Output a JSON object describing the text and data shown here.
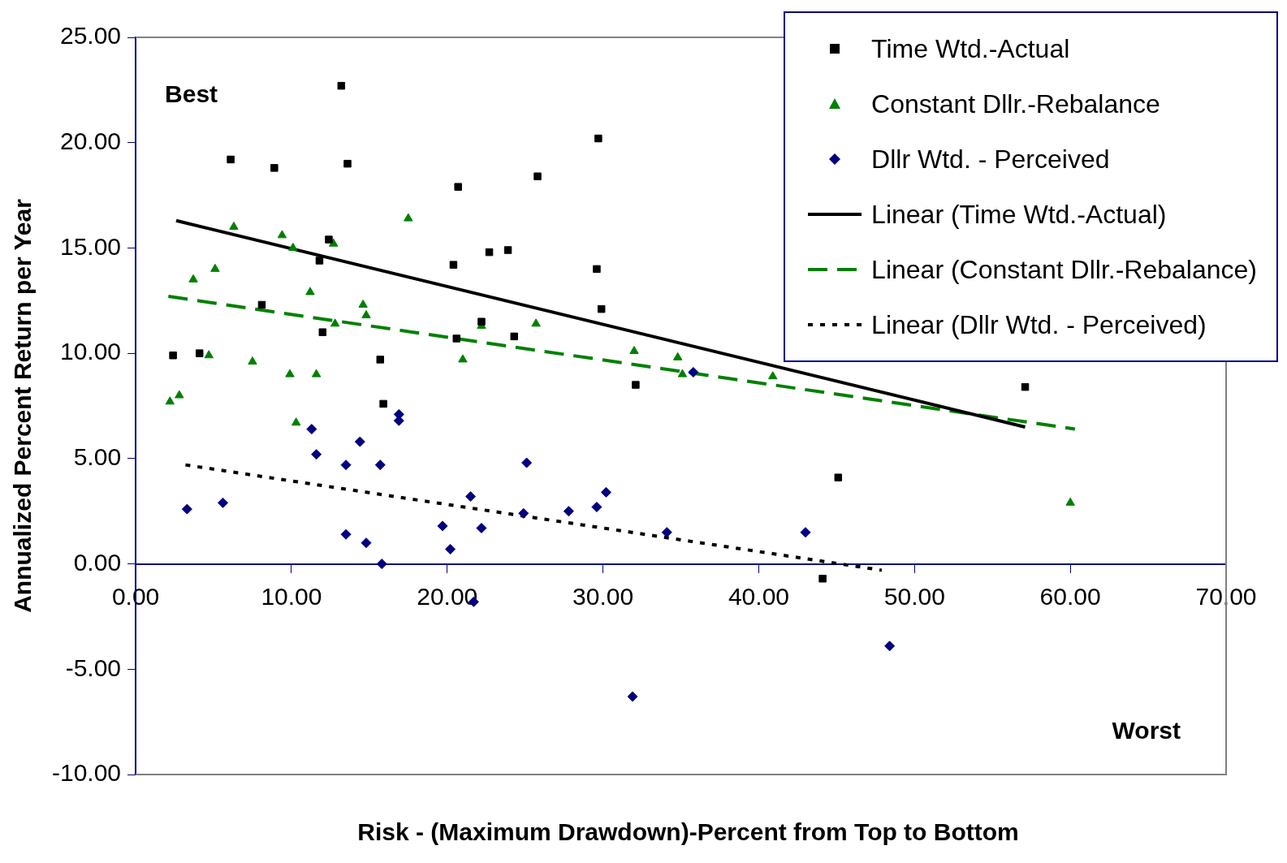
{
  "chart_data": {
    "type": "scatter",
    "xlabel": "Risk - (Maximum Drawdown)-Percent from Top to Bottom",
    "ylabel": "Annualized Percent Return per Year",
    "annotations": [
      "Best",
      "Worst"
    ],
    "xlim": [
      0,
      70
    ],
    "xticks": [
      {
        "value": 0,
        "label": "0.00"
      },
      {
        "value": 10,
        "label": "10.00"
      },
      {
        "value": 20,
        "label": "20.00"
      },
      {
        "value": 30,
        "label": "30.00"
      },
      {
        "value": 40,
        "label": "40.00"
      },
      {
        "value": 50,
        "label": "50.00"
      },
      {
        "value": 60,
        "label": "60.00"
      },
      {
        "value": 70,
        "label": "70.00"
      }
    ],
    "ylim": [
      -10,
      25
    ],
    "yticks": [
      {
        "value": -10,
        "label": "-10.00"
      },
      {
        "value": -5,
        "label": "-5.00"
      },
      {
        "value": 0,
        "label": "0.00"
      },
      {
        "value": 5,
        "label": "5.00"
      },
      {
        "value": 10,
        "label": "10.00"
      },
      {
        "value": 15,
        "label": "15.00"
      },
      {
        "value": 20,
        "label": "20.00"
      },
      {
        "value": 25,
        "label": "25.00"
      }
    ],
    "grid": false,
    "legend": "top right",
    "series": [
      {
        "name": "Time Wtd.-Actual",
        "type": "scatter",
        "marker": "square",
        "color": "#000000",
        "x": [
          2.4,
          4.1,
          6.1,
          8.9,
          8.1,
          12.4,
          11.8,
          12.0,
          13.2,
          13.6,
          15.7,
          15.9,
          20.4,
          20.7,
          20.6,
          22.2,
          22.7,
          23.9,
          24.3,
          25.8,
          29.6,
          29.7,
          29.9,
          32.1,
          45.1,
          44.1,
          57.1
        ],
        "values": [
          9.9,
          10.0,
          19.2,
          18.8,
          12.3,
          15.4,
          14.4,
          11.0,
          22.7,
          19.0,
          9.7,
          7.6,
          14.2,
          17.9,
          10.7,
          11.5,
          14.8,
          14.9,
          10.8,
          18.4,
          14.0,
          20.2,
          12.1,
          8.5,
          4.1,
          -0.7,
          8.4
        ]
      },
      {
        "name": "Constant Dllr.-Rebalance",
        "type": "scatter",
        "marker": "triangle",
        "color": "#008000",
        "x": [
          2.2,
          2.8,
          3.7,
          4.7,
          5.1,
          6.3,
          7.5,
          9.4,
          9.9,
          10.1,
          10.3,
          11.2,
          11.6,
          12.7,
          12.8,
          14.6,
          14.8,
          17.5,
          21.0,
          22.2,
          25.7,
          32.0,
          34.8,
          35.1,
          40.9,
          60.0
        ],
        "values": [
          7.7,
          8.0,
          13.5,
          9.9,
          14.0,
          16.0,
          9.6,
          15.6,
          9.0,
          15.0,
          6.7,
          12.9,
          9.0,
          15.2,
          11.4,
          12.3,
          11.8,
          16.4,
          9.7,
          11.3,
          11.4,
          10.1,
          9.8,
          9.0,
          8.9,
          2.9
        ]
      },
      {
        "name": "Dllr Wtd. - Perceived",
        "type": "scatter",
        "marker": "diamond",
        "color": "#000080",
        "x": [
          3.3,
          5.6,
          11.3,
          11.6,
          13.5,
          13.5,
          14.4,
          14.8,
          15.7,
          15.8,
          16.9,
          16.9,
          19.7,
          20.2,
          21.5,
          21.7,
          22.2,
          24.9,
          25.1,
          27.8,
          29.6,
          30.2,
          31.9,
          34.1,
          35.8,
          43.0,
          48.4
        ],
        "values": [
          2.6,
          2.9,
          6.4,
          5.2,
          4.7,
          1.4,
          5.8,
          1.0,
          4.7,
          0.0,
          7.1,
          6.8,
          1.8,
          0.7,
          3.2,
          -1.8,
          1.7,
          2.4,
          4.8,
          2.5,
          2.7,
          3.4,
          -6.3,
          1.5,
          9.1,
          1.5,
          -3.9
        ]
      },
      {
        "name": "Linear (Time Wtd.-Actual)",
        "type": "line",
        "line_style": "solid",
        "color": "#000000",
        "x": [
          2.6,
          57.1
        ],
        "values": [
          16.3,
          6.5
        ]
      },
      {
        "name": "Linear (Constant Dllr.-Rebalance)",
        "type": "line",
        "line_style": "dashed",
        "color": "#008000",
        "x": [
          2.1,
          60.3
        ],
        "values": [
          12.7,
          6.4
        ]
      },
      {
        "name": "Linear (Dllr Wtd. - Perceived)",
        "type": "line",
        "line_style": "dotted",
        "color": "#000000",
        "x": [
          3.2,
          47.9
        ],
        "values": [
          4.7,
          -0.3
        ]
      }
    ]
  }
}
